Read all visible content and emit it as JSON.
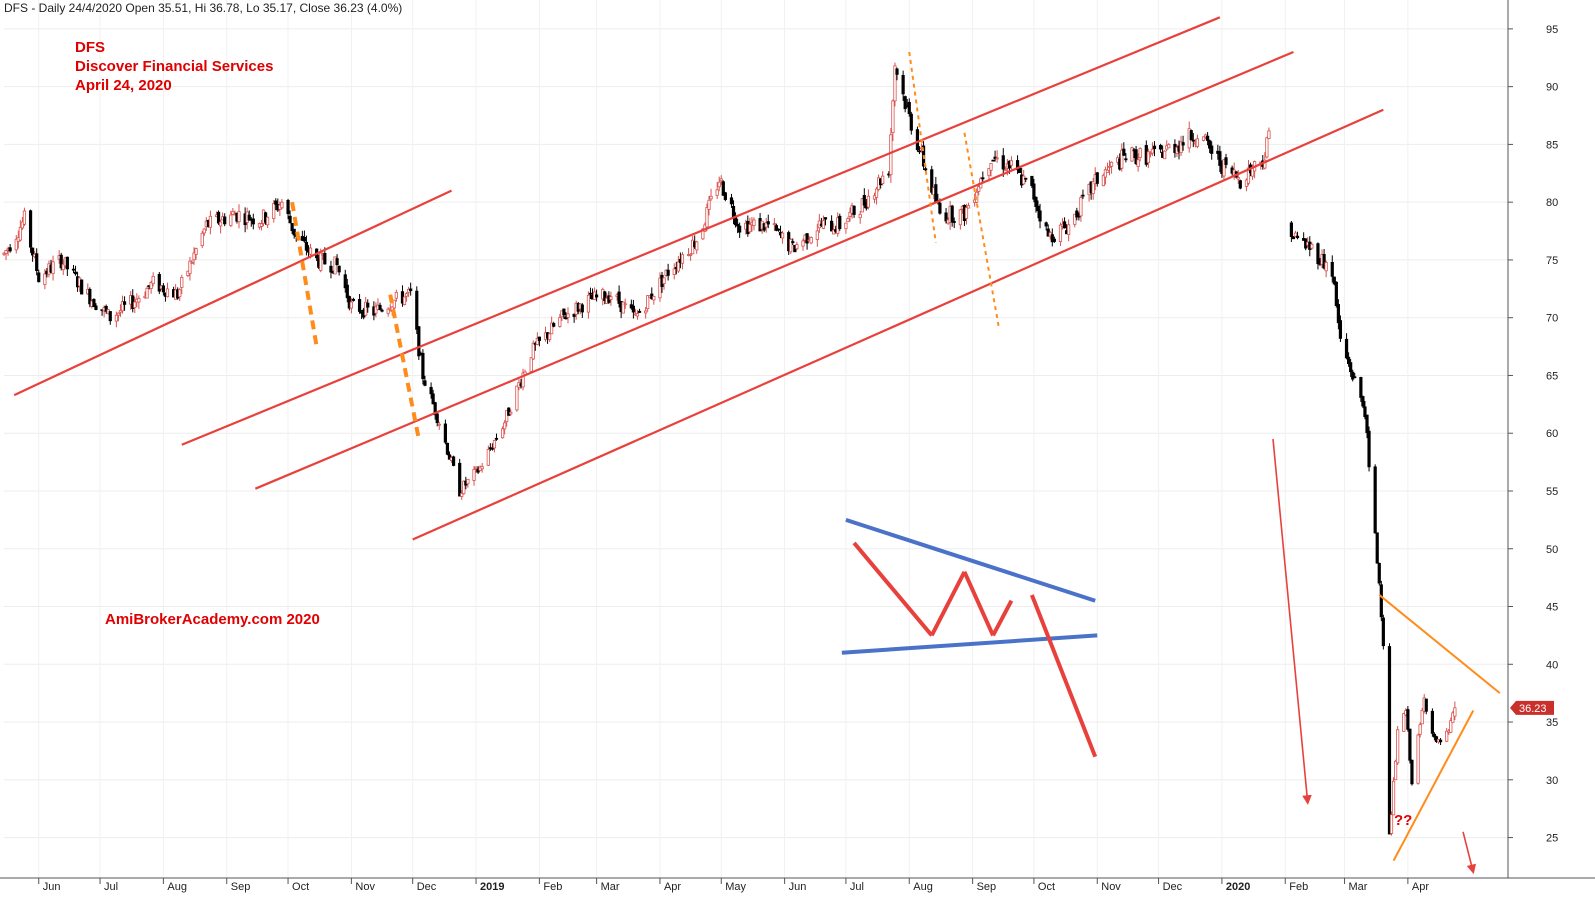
{
  "header": "DFS - Daily 24/4/2020 Open 35.51, Hi 36.78, Lo 35.17, Close 36.23 (4.0%)",
  "title": {
    "line1": "DFS",
    "line2": "Discover Financial Services",
    "line3": "April 24, 2020"
  },
  "watermark": "AmiBrokerAcademy.com   2020",
  "question": "??",
  "last_price": "36.23",
  "colors": {
    "bull": "#d9534f",
    "bear": "#000000",
    "channel": "#e8413c",
    "orange": "#ff8c1a",
    "blue": "#4a72c8",
    "text_red": "#e00000"
  },
  "chart_data": {
    "type": "candlestick",
    "symbol": "DFS",
    "x_axis": {
      "labels": [
        "Jun",
        "Jul",
        "Aug",
        "Sep",
        "Oct",
        "Nov",
        "Dec",
        "2019",
        "Feb",
        "Mar",
        "Apr",
        "May",
        "Jun",
        "Jul",
        "Aug",
        "Sep",
        "Oct",
        "Nov",
        "Dec",
        "2020",
        "Feb",
        "Mar",
        "Apr"
      ],
      "range": [
        "2018-05-15",
        "2020-05-20"
      ]
    },
    "y_axis": {
      "ticks": [
        25,
        30,
        35,
        40,
        45,
        50,
        55,
        60,
        65,
        70,
        75,
        80,
        85,
        90,
        95
      ],
      "range": [
        21.5,
        97.5
      ],
      "position": "right"
    },
    "last_bar": {
      "date": "2020-04-24",
      "open": 35.51,
      "high": 36.78,
      "low": 35.17,
      "close": 36.23
    },
    "price_path": [
      [
        "2018-05-15",
        75.5
      ],
      [
        "2018-05-25",
        78.5
      ],
      [
        "2018-06-01",
        73.5
      ],
      [
        "2018-06-12",
        75
      ],
      [
        "2018-06-25",
        72
      ],
      [
        "2018-07-06",
        70
      ],
      [
        "2018-07-18",
        71.5
      ],
      [
        "2018-07-27",
        73
      ],
      [
        "2018-08-08",
        72
      ],
      [
        "2018-08-22",
        78
      ],
      [
        "2018-09-05",
        79
      ],
      [
        "2018-09-18",
        78.5
      ],
      [
        "2018-09-28",
        80
      ],
      [
        "2018-10-05",
        77
      ],
      [
        "2018-10-15",
        75
      ],
      [
        "2018-10-25",
        74.5
      ],
      [
        "2018-11-01",
        71
      ],
      [
        "2018-11-12",
        70.5
      ],
      [
        "2018-11-22",
        71.5
      ],
      [
        "2018-11-30",
        72
      ],
      [
        "2018-12-06",
        65
      ],
      [
        "2018-12-14",
        61
      ],
      [
        "2018-12-24",
        55
      ],
      [
        "2019-01-03",
        57
      ],
      [
        "2019-01-15",
        61
      ],
      [
        "2019-01-28",
        67
      ],
      [
        "2019-02-12",
        70
      ],
      [
        "2019-02-25",
        71.5
      ],
      [
        "2019-03-08",
        72
      ],
      [
        "2019-03-20",
        70
      ],
      [
        "2019-04-05",
        74
      ],
      [
        "2019-04-20",
        77
      ],
      [
        "2019-04-30",
        82
      ],
      [
        "2019-05-10",
        78
      ],
      [
        "2019-05-24",
        78
      ],
      [
        "2019-06-05",
        76
      ],
      [
        "2019-06-18",
        78
      ],
      [
        "2019-06-28",
        78
      ],
      [
        "2019-07-10",
        80
      ],
      [
        "2019-07-22",
        83
      ],
      [
        "2019-07-25",
        92
      ],
      [
        "2019-07-31",
        88
      ],
      [
        "2019-08-07",
        84
      ],
      [
        "2019-08-16",
        79
      ],
      [
        "2019-08-28",
        79
      ],
      [
        "2019-09-10",
        84
      ],
      [
        "2019-09-20",
        83
      ],
      [
        "2019-09-30",
        81
      ],
      [
        "2019-10-08",
        77
      ],
      [
        "2019-10-18",
        78
      ],
      [
        "2019-11-01",
        82
      ],
      [
        "2019-11-15",
        84
      ],
      [
        "2019-11-29",
        84
      ],
      [
        "2019-12-10",
        85
      ],
      [
        "2019-12-20",
        86
      ],
      [
        "2020-01-02",
        83
      ],
      [
        "2020-01-10",
        82
      ],
      [
        "2020-01-22",
        84
      ],
      [
        "2020-01-24",
        86
      ],
      [
        "2020-02-05",
        77
      ],
      [
        "2020-02-14",
        76
      ],
      [
        "2020-02-24",
        74
      ],
      [
        "2020-02-28",
        68
      ],
      [
        "2020-03-05",
        65
      ],
      [
        "2020-03-11",
        62
      ],
      [
        "2020-03-13",
        57
      ],
      [
        "2020-03-18",
        47
      ],
      [
        "2020-03-20",
        42
      ],
      [
        "2020-03-23",
        25
      ],
      [
        "2020-03-27",
        34
      ],
      [
        "2020-03-31",
        36
      ],
      [
        "2020-04-03",
        30
      ],
      [
        "2020-04-09",
        37
      ],
      [
        "2020-04-15",
        33
      ],
      [
        "2020-04-21",
        34
      ],
      [
        "2020-04-24",
        36.23
      ]
    ],
    "annotations": {
      "channel_lines": [
        [
          [
            "2018-05-20",
            63.3
          ],
          [
            "2018-12-20",
            81
          ]
        ],
        [
          [
            "2018-08-10",
            59
          ],
          [
            "2019-12-31",
            96
          ]
        ],
        [
          [
            "2018-09-15",
            55.2
          ],
          [
            "2020-02-05",
            93
          ]
        ],
        [
          [
            "2018-12-01",
            50.8
          ],
          [
            "2020-03-20",
            88
          ]
        ]
      ],
      "orange_dashed": [
        [
          [
            "2018-10-03",
            80
          ],
          [
            "2018-10-15",
            67.5
          ]
        ],
        [
          [
            "2018-11-20",
            72
          ],
          [
            "2018-12-04",
            59.5
          ]
        ]
      ],
      "orange_dotted": [
        [
          [
            "2019-08-01",
            93
          ],
          [
            "2019-08-14",
            76.5
          ]
        ],
        [
          [
            "2019-08-28",
            86
          ],
          [
            "2019-09-14",
            69
          ]
        ]
      ],
      "blue_lines": [
        [
          [
            "2019-07-01",
            52.5
          ],
          [
            "2019-10-31",
            45.5
          ]
        ],
        [
          [
            "2019-06-29",
            41
          ],
          [
            "2019-11-01",
            42.5
          ]
        ]
      ],
      "red_zigzag": [
        [
          "2019-07-05",
          50.5
        ],
        [
          "2019-08-12",
          42.5
        ],
        [
          "2019-08-28",
          48
        ],
        [
          "2019-09-11",
          42.5
        ],
        [
          "2019-09-20",
          45.5
        ],
        [
          "2019-09-30",
          46
        ],
        [
          "2019-10-31",
          32
        ]
      ],
      "red_arrows": [
        [
          [
            "2020-01-26",
            59.5
          ],
          [
            "2020-02-12",
            28
          ]
        ],
        [
          [
            "2020-04-28",
            25.5
          ],
          [
            "2020-05-03",
            22
          ]
        ]
      ],
      "orange_triangle": [
        [
          [
            "2020-03-18",
            46
          ],
          [
            "2020-05-16",
            37.5
          ]
        ],
        [
          [
            "2020-03-25",
            23
          ],
          [
            "2020-05-03",
            36
          ]
        ]
      ]
    }
  }
}
